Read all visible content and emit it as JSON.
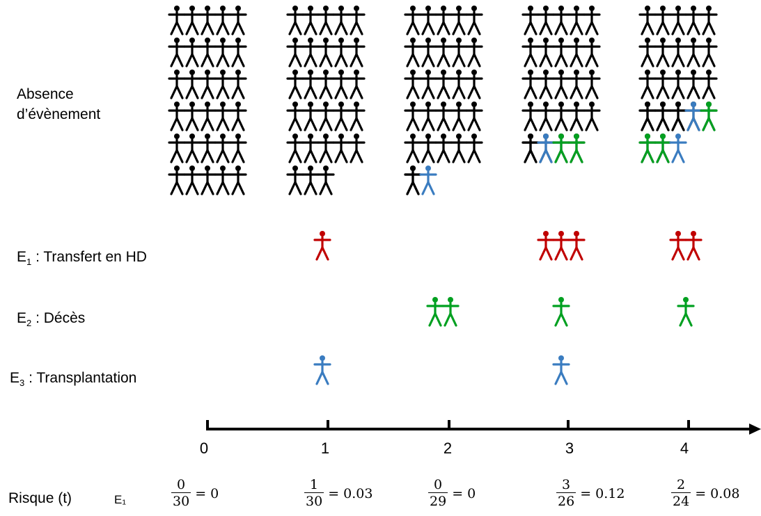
{
  "labels": {
    "no_event_line1": "Absence",
    "no_event_line2": "d’évènement",
    "e1_prefix": "E",
    "e1_sub": "1",
    "e1_text": " : Transfert en HD",
    "e2_prefix": "E",
    "e2_sub": "2",
    "e2_text": " : Décès",
    "e3_prefix": "E",
    "e3_sub": "3",
    "e3_text": " : Transplantation",
    "risk": "Risque (t)",
    "risk_event": "E₁"
  },
  "colors": {
    "none": "#000000",
    "transfer": "#c00000",
    "death": "#00a020",
    "transplant": "#3a7cc0"
  },
  "axis": {
    "ticks": [
      "0",
      "1",
      "2",
      "3",
      "4"
    ]
  },
  "time_points": [
    {
      "t": "0",
      "no_event_count": 30,
      "no_event_colors": [],
      "transfer": 0,
      "death": 0,
      "transplant": 0,
      "risk": {
        "num": "0",
        "den": "30",
        "value": "= 0"
      }
    },
    {
      "t": "1",
      "no_event_count": 28,
      "no_event_colors": [],
      "transfer": 1,
      "death": 0,
      "transplant": 1,
      "risk": {
        "num": "1",
        "den": "30",
        "value": "= 0.03"
      }
    },
    {
      "t": "2",
      "no_event_count": 26,
      "no_event_colors": [
        "transplant"
      ],
      "transfer": 0,
      "death": 2,
      "transplant": 0,
      "risk": {
        "num": "0",
        "den": "29",
        "value": "= 0"
      }
    },
    {
      "t": "3",
      "no_event_count": 24,
      "no_event_colors": [
        "none",
        "transplant",
        "death",
        "death"
      ],
      "transfer": 3,
      "death": 1,
      "transplant": 1,
      "risk": {
        "num": "3",
        "den": "26",
        "value": "= 0.12"
      }
    },
    {
      "t": "4",
      "no_event_count": 22,
      "no_event_colors": [
        "transplant",
        "death",
        "death",
        "death",
        "transplant"
      ],
      "transfer": 2,
      "death": 1,
      "transplant": 0,
      "risk": {
        "num": "2",
        "den": "24",
        "value": "= 0.08"
      }
    }
  ]
}
